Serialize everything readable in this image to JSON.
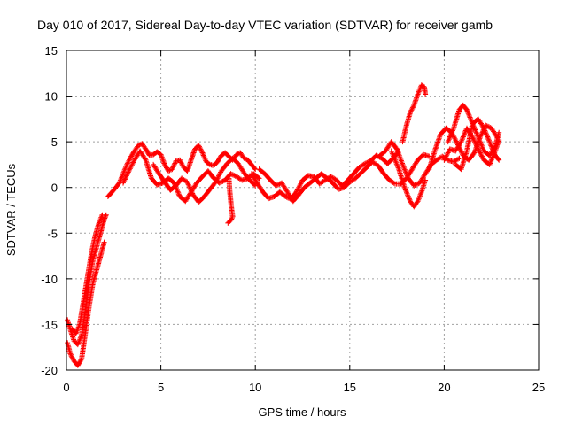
{
  "chart_data": {
    "type": "scatter",
    "title": "Day 010 of 2017, Sidereal Day-to-day VTEC variation (SDTVAR) for receiver gamb",
    "xlabel": "GPS time / hours",
    "ylabel": "SDTVAR / TECUs",
    "xlim": [
      0,
      25
    ],
    "ylim": [
      -20,
      15
    ],
    "xticks": [
      0,
      5,
      10,
      15,
      20,
      25
    ],
    "yticks": [
      -20,
      -15,
      -10,
      -5,
      0,
      5,
      10,
      15
    ],
    "grid": true,
    "marker": "+",
    "series": [
      {
        "name": "SDTVAR",
        "color": "#ff0000",
        "tracks": [
          [
            [
              0.05,
              -14.5
            ],
            [
              0.2,
              -15.5
            ],
            [
              0.4,
              -16.8
            ],
            [
              0.6,
              -17.2
            ],
            [
              0.8,
              -16.2
            ],
            [
              1.0,
              -13.5
            ],
            [
              1.2,
              -10.5
            ],
            [
              1.4,
              -8.0
            ],
            [
              1.6,
              -6.5
            ],
            [
              1.8,
              -5.0
            ],
            [
              2.0,
              -3.5
            ],
            [
              2.1,
              -3.0
            ]
          ],
          [
            [
              0.05,
              -17.0
            ],
            [
              0.2,
              -18.2
            ],
            [
              0.4,
              -19.0
            ],
            [
              0.6,
              -19.5
            ],
            [
              0.8,
              -18.8
            ],
            [
              1.0,
              -16.0
            ],
            [
              1.2,
              -13.0
            ],
            [
              1.4,
              -10.5
            ],
            [
              1.6,
              -9.0
            ],
            [
              1.8,
              -7.5
            ],
            [
              2.0,
              -6.0
            ]
          ],
          [
            [
              0.3,
              -15.5
            ],
            [
              0.5,
              -16.0
            ],
            [
              0.7,
              -15.0
            ],
            [
              0.9,
              -12.5
            ],
            [
              1.1,
              -10.0
            ],
            [
              1.3,
              -7.5
            ],
            [
              1.5,
              -5.5
            ],
            [
              1.7,
              -4.0
            ],
            [
              1.9,
              -3.0
            ]
          ],
          [
            [
              2.2,
              -1.0
            ],
            [
              2.5,
              -0.3
            ],
            [
              2.8,
              0.5
            ],
            [
              3.0,
              1.5
            ],
            [
              3.2,
              2.5
            ],
            [
              3.4,
              3.3
            ],
            [
              3.6,
              4.0
            ],
            [
              3.8,
              4.6
            ],
            [
              4.0,
              4.8
            ],
            [
              4.2,
              4.2
            ],
            [
              4.4,
              3.5
            ],
            [
              4.6,
              3.6
            ],
            [
              4.8,
              3.9
            ],
            [
              5.0,
              3.6
            ],
            [
              5.2,
              2.5
            ],
            [
              5.4,
              1.8
            ],
            [
              5.6,
              2.0
            ],
            [
              5.8,
              2.9
            ],
            [
              6.0,
              3.0
            ],
            [
              6.2,
              2.2
            ],
            [
              6.4,
              1.8
            ],
            [
              6.6,
              3.0
            ],
            [
              6.8,
              4.2
            ],
            [
              7.0,
              4.6
            ],
            [
              7.2,
              3.8
            ],
            [
              7.4,
              2.8
            ],
            [
              7.6,
              2.5
            ],
            [
              7.8,
              2.4
            ],
            [
              8.0,
              2.8
            ],
            [
              8.2,
              3.5
            ],
            [
              8.4,
              3.8
            ],
            [
              8.6,
              3.4
            ],
            [
              8.8,
              3.0
            ],
            [
              9.0,
              3.6
            ],
            [
              9.2,
              3.8
            ],
            [
              9.4,
              3.2
            ],
            [
              9.6,
              3.0
            ],
            [
              9.8,
              2.5
            ],
            [
              10.0,
              2.0
            ]
          ],
          [
            [
              3.0,
              0.5
            ],
            [
              3.3,
              1.8
            ],
            [
              3.6,
              3.0
            ],
            [
              3.9,
              4.0
            ],
            [
              4.2,
              3.0
            ],
            [
              4.5,
              1.0
            ],
            [
              4.8,
              0.3
            ],
            [
              5.1,
              0.5
            ],
            [
              5.4,
              1.0
            ],
            [
              5.7,
              0.5
            ],
            [
              6.0,
              -1.0
            ],
            [
              6.3,
              -1.5
            ],
            [
              6.6,
              -0.5
            ],
            [
              6.9,
              0.5
            ],
            [
              7.2,
              1.2
            ],
            [
              7.5,
              1.8
            ],
            [
              7.8,
              1.0
            ],
            [
              8.1,
              0.5
            ],
            [
              8.4,
              0.8
            ],
            [
              8.7,
              1.5
            ],
            [
              9.0,
              1.2
            ],
            [
              9.3,
              0.8
            ],
            [
              9.6,
              1.0
            ],
            [
              9.9,
              1.5
            ],
            [
              10.2,
              1.0
            ]
          ],
          [
            [
              4.6,
              2.5
            ],
            [
              4.9,
              1.5
            ],
            [
              5.2,
              0.6
            ],
            [
              5.5,
              -0.3
            ],
            [
              5.8,
              0.2
            ],
            [
              6.1,
              1.0
            ],
            [
              6.4,
              0.6
            ],
            [
              6.7,
              -0.8
            ],
            [
              7.0,
              -1.6
            ],
            [
              7.3,
              -1.0
            ],
            [
              7.6,
              -0.2
            ],
            [
              7.9,
              0.6
            ],
            [
              8.2,
              1.8
            ],
            [
              8.5,
              2.6
            ],
            [
              8.8,
              3.2
            ],
            [
              9.1,
              2.6
            ],
            [
              9.4,
              1.6
            ],
            [
              9.7,
              0.8
            ],
            [
              10.0,
              0.2
            ]
          ],
          [
            [
              8.6,
              1.0
            ],
            [
              8.65,
              -0.5
            ],
            [
              8.7,
              -1.5
            ],
            [
              8.75,
              -2.5
            ],
            [
              8.8,
              -3.2
            ],
            [
              8.7,
              -3.6
            ],
            [
              8.55,
              -3.9
            ]
          ],
          [
            [
              9.8,
              1.5
            ],
            [
              10.1,
              0.5
            ],
            [
              10.4,
              -0.5
            ],
            [
              10.7,
              -1.2
            ],
            [
              11.0,
              -1.0
            ],
            [
              11.3,
              -0.5
            ],
            [
              11.6,
              -1.0
            ],
            [
              11.9,
              -1.3
            ],
            [
              12.2,
              -0.4
            ],
            [
              12.5,
              0.8
            ],
            [
              12.8,
              1.3
            ],
            [
              13.1,
              1.2
            ],
            [
              13.4,
              0.4
            ],
            [
              13.7,
              0.8
            ],
            [
              14.0,
              1.2
            ],
            [
              14.3,
              0.8
            ],
            [
              14.6,
              0.2
            ],
            [
              14.9,
              0.8
            ],
            [
              15.2,
              1.5
            ],
            [
              15.5,
              2.2
            ],
            [
              15.8,
              2.6
            ],
            [
              16.1,
              2.9
            ],
            [
              16.4,
              3.5
            ],
            [
              16.7,
              3.2
            ],
            [
              17.0,
              2.6
            ],
            [
              17.3,
              3.2
            ],
            [
              17.6,
              4.0
            ]
          ],
          [
            [
              10.2,
              2.0
            ],
            [
              10.5,
              1.5
            ],
            [
              10.8,
              0.8
            ],
            [
              11.1,
              0.2
            ],
            [
              11.4,
              0.5
            ],
            [
              11.7,
              -0.5
            ],
            [
              12.0,
              -1.5
            ],
            [
              12.3,
              -0.8
            ],
            [
              12.6,
              0.0
            ],
            [
              12.9,
              0.5
            ],
            [
              13.2,
              1.0
            ],
            [
              13.5,
              1.5
            ],
            [
              13.8,
              1.0
            ],
            [
              14.1,
              0.5
            ],
            [
              14.4,
              -0.2
            ],
            [
              14.7,
              0.0
            ],
            [
              15.0,
              0.6
            ],
            [
              15.3,
              1.0
            ],
            [
              15.6,
              1.6
            ],
            [
              15.9,
              2.2
            ],
            [
              16.2,
              2.8
            ],
            [
              16.5,
              2.4
            ],
            [
              16.8,
              1.5
            ],
            [
              17.1,
              0.8
            ],
            [
              17.4,
              0.4
            ],
            [
              17.7,
              0.4
            ],
            [
              18.0,
              1.0
            ],
            [
              18.3,
              2.0
            ],
            [
              18.6,
              3.0
            ],
            [
              18.9,
              3.6
            ],
            [
              19.2,
              3.4
            ]
          ],
          [
            [
              16.6,
              3.5
            ],
            [
              16.9,
              4.0
            ],
            [
              17.2,
              5.0
            ],
            [
              17.5,
              4.2
            ],
            [
              17.8,
              2.5
            ],
            [
              18.1,
              1.0
            ],
            [
              18.4,
              0.2
            ],
            [
              18.7,
              0.5
            ],
            [
              19.0,
              1.5
            ],
            [
              19.3,
              2.5
            ],
            [
              19.6,
              3.0
            ],
            [
              19.9,
              3.4
            ],
            [
              20.2,
              3.0
            ],
            [
              20.5,
              2.8
            ],
            [
              20.8,
              3.2
            ]
          ],
          [
            [
              17.2,
              4.0
            ],
            [
              17.6,
              2.0
            ],
            [
              17.9,
              0.0
            ],
            [
              18.2,
              -1.5
            ],
            [
              18.4,
              -2.1
            ],
            [
              18.6,
              -1.5
            ],
            [
              18.8,
              -0.5
            ],
            [
              19.0,
              0.8
            ]
          ],
          [
            [
              17.8,
              5.0
            ],
            [
              18.0,
              6.8
            ],
            [
              18.2,
              8.2
            ],
            [
              18.4,
              9.0
            ],
            [
              18.6,
              10.2
            ],
            [
              18.8,
              11.2
            ],
            [
              18.95,
              11.0
            ],
            [
              19.0,
              10.2
            ]
          ],
          [
            [
              19.2,
              2.0
            ],
            [
              19.5,
              4.0
            ],
            [
              19.8,
              5.8
            ],
            [
              20.1,
              6.5
            ],
            [
              20.4,
              6.0
            ],
            [
              20.7,
              4.8
            ],
            [
              21.0,
              3.5
            ],
            [
              21.3,
              3.0
            ],
            [
              21.6,
              3.8
            ],
            [
              21.9,
              5.5
            ],
            [
              22.2,
              6.8
            ],
            [
              22.5,
              6.5
            ],
            [
              22.8,
              5.5
            ]
          ],
          [
            [
              20.2,
              5.0
            ],
            [
              20.5,
              6.5
            ],
            [
              20.8,
              8.5
            ],
            [
              21.0,
              9.0
            ],
            [
              21.2,
              8.5
            ],
            [
              21.5,
              7.0
            ],
            [
              21.8,
              5.5
            ],
            [
              22.1,
              4.0
            ],
            [
              22.4,
              3.5
            ],
            [
              22.7,
              4.5
            ],
            [
              22.9,
              6.0
            ]
          ],
          [
            [
              20.0,
              3.0
            ],
            [
              20.3,
              4.2
            ],
            [
              20.6,
              4.0
            ],
            [
              20.9,
              5.0
            ],
            [
              21.2,
              6.5
            ],
            [
              21.5,
              5.5
            ],
            [
              21.8,
              4.2
            ],
            [
              22.1,
              3.0
            ],
            [
              22.4,
              2.5
            ],
            [
              22.7,
              4.0
            ],
            [
              22.9,
              5.2
            ]
          ],
          [
            [
              20.6,
              2.5
            ],
            [
              20.9,
              2.0
            ],
            [
              21.2,
              4.0
            ],
            [
              21.5,
              7.0
            ],
            [
              21.8,
              7.5
            ],
            [
              22.1,
              6.5
            ],
            [
              22.4,
              5.0
            ],
            [
              22.7,
              3.5
            ],
            [
              22.9,
              3.0
            ]
          ]
        ]
      }
    ]
  }
}
